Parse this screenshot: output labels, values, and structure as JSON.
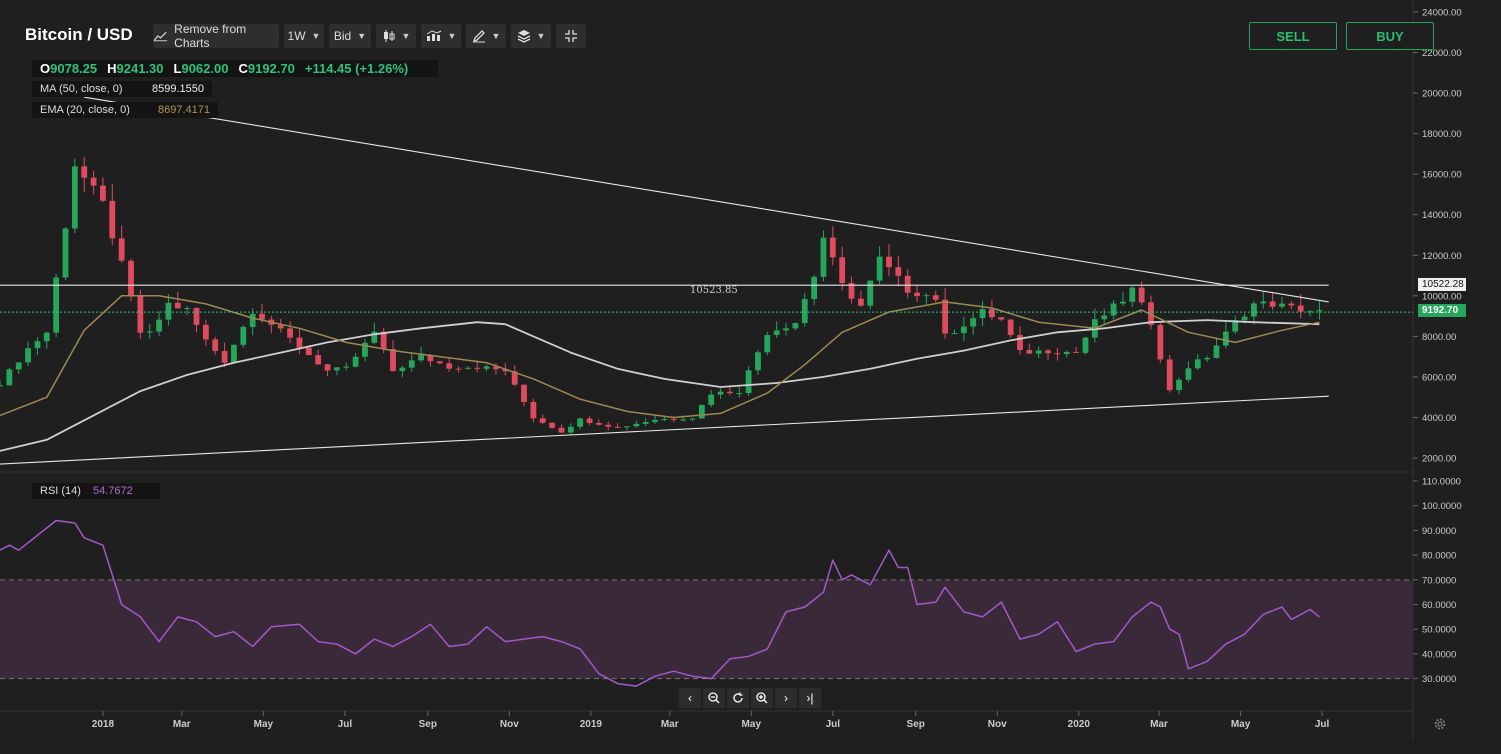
{
  "header": {
    "title": "Bitcoin / USD",
    "remove_label": "Remove from Charts",
    "interval_label": "1W",
    "price_type_label": "Bid",
    "sell_label": "SELL",
    "buy_label": "BUY"
  },
  "ohlc": {
    "o_key": "O",
    "o_val": "9078.25",
    "h_key": "H",
    "h_val": "9241.30",
    "l_key": "L",
    "l_val": "9062.00",
    "c_key": "C",
    "c_val": "9192.70",
    "change": "+114.45 (+1.26%)"
  },
  "indicators": {
    "ma_label": "MA (50, close, 0)",
    "ma_value": "8599.1550",
    "ma_color": "#cfcfcf",
    "ema_label": "EMA (20, close, 0)",
    "ema_value": "8697.4171",
    "ema_color": "#9c8a52",
    "rsi_label": "RSI (14)",
    "rsi_value": "54.7672",
    "rsi_color": "#a159c9"
  },
  "colors": {
    "up": "#26a65b",
    "down": "#e04a5e",
    "background": "#1f1f1f",
    "rsi_band": "#3a2939",
    "current_price_line": "#2ec27e"
  },
  "price_tags": {
    "horizontal_level": "10522.28",
    "horizontal_level_inline": "10523.85",
    "current": "9192.70"
  },
  "chart_data": [
    {
      "type": "candlestick",
      "interval": "1W",
      "ylim": [
        2000,
        24000
      ],
      "yticks": [
        "24000.00",
        "22000.00",
        "20000.00",
        "18000.00",
        "16000.00",
        "14000.00",
        "12000.00",
        "10000.00",
        "8000.00",
        "6000.00",
        "4000.00",
        "2000.00"
      ],
      "xticks": [
        {
          "label": "2018",
          "x": "2018-01-01"
        },
        {
          "label": "Mar",
          "x": "2018-03-01"
        },
        {
          "label": "May",
          "x": "2018-05-01"
        },
        {
          "label": "Jul",
          "x": "2018-07-01"
        },
        {
          "label": "Sep",
          "x": "2018-09-01"
        },
        {
          "label": "Nov",
          "x": "2018-11-01"
        },
        {
          "label": "2019",
          "x": "2019-01-01"
        },
        {
          "label": "Mar",
          "x": "2019-03-01"
        },
        {
          "label": "May",
          "x": "2019-05-01"
        },
        {
          "label": "Jul",
          "x": "2019-07-01"
        },
        {
          "label": "Sep",
          "x": "2019-09-01"
        },
        {
          "label": "Nov",
          "x": "2019-11-01"
        },
        {
          "label": "2020",
          "x": "2020-01-01"
        },
        {
          "label": "Mar",
          "x": "2020-03-01"
        },
        {
          "label": "May",
          "x": "2020-05-01"
        },
        {
          "label": "Jul",
          "x": "2020-07-01"
        }
      ],
      "x_range": [
        "2017-10-16",
        "2020-09-07"
      ],
      "keypoints_close": [
        [
          "2017-10-16",
          5700
        ],
        [
          "2017-11-06",
          7400
        ],
        [
          "2017-11-20",
          8200
        ],
        [
          "2017-12-04",
          13500
        ],
        [
          "2017-12-11",
          16500
        ],
        [
          "2017-12-18",
          15800
        ],
        [
          "2018-01-01",
          14500
        ],
        [
          "2018-01-15",
          11500
        ],
        [
          "2018-01-29",
          8200
        ],
        [
          "2018-02-05",
          8100
        ],
        [
          "2018-02-19",
          9600
        ],
        [
          "2018-03-05",
          9300
        ],
        [
          "2018-03-19",
          7800
        ],
        [
          "2018-04-02",
          6800
        ],
        [
          "2018-04-23",
          9300
        ],
        [
          "2018-05-07",
          8600
        ],
        [
          "2018-05-28",
          7500
        ],
        [
          "2018-06-18",
          6300
        ],
        [
          "2018-07-02",
          6400
        ],
        [
          "2018-07-23",
          8200
        ],
        [
          "2018-08-06",
          6300
        ],
        [
          "2018-08-27",
          7000
        ],
        [
          "2018-09-17",
          6500
        ],
        [
          "2018-10-08",
          6500
        ],
        [
          "2018-10-29",
          6300
        ],
        [
          "2018-11-19",
          4000
        ],
        [
          "2018-12-10",
          3300
        ],
        [
          "2018-12-24",
          3900
        ],
        [
          "2019-01-21",
          3500
        ],
        [
          "2019-02-18",
          3900
        ],
        [
          "2019-03-18",
          4000
        ],
        [
          "2019-04-01",
          5200
        ],
        [
          "2019-04-22",
          5300
        ],
        [
          "2019-05-13",
          8200
        ],
        [
          "2019-06-03",
          8700
        ],
        [
          "2019-06-17",
          11000
        ],
        [
          "2019-06-24",
          12900
        ],
        [
          "2019-07-08",
          10500
        ],
        [
          "2019-07-22",
          9500
        ],
        [
          "2019-08-05",
          11800
        ],
        [
          "2019-08-26",
          10300
        ],
        [
          "2019-09-16",
          9900
        ],
        [
          "2019-09-23",
          8000
        ],
        [
          "2019-10-21",
          9200
        ],
        [
          "2019-11-04",
          8800
        ],
        [
          "2019-11-18",
          7200
        ],
        [
          "2019-12-09",
          7300
        ],
        [
          "2019-12-30",
          7200
        ],
        [
          "2020-01-13",
          8700
        ],
        [
          "2020-02-03",
          9800
        ],
        [
          "2020-02-10",
          10300
        ],
        [
          "2020-02-24",
          8700
        ],
        [
          "2020-03-09",
          5300
        ],
        [
          "2020-03-23",
          6500
        ],
        [
          "2020-04-06",
          7000
        ],
        [
          "2020-04-27",
          8700
        ],
        [
          "2020-05-11",
          9600
        ],
        [
          "2020-05-25",
          9600
        ],
        [
          "2020-06-08",
          9400
        ],
        [
          "2020-06-29",
          9192.7
        ]
      ],
      "ma50": [
        [
          "2017-10-16",
          2350
        ],
        [
          "2017-11-20",
          2900
        ],
        [
          "2017-12-25",
          4100
        ],
        [
          "2018-01-29",
          5300
        ],
        [
          "2018-03-05",
          6100
        ],
        [
          "2018-04-09",
          6700
        ],
        [
          "2018-05-14",
          7200
        ],
        [
          "2018-06-18",
          7700
        ],
        [
          "2018-07-23",
          8100
        ],
        [
          "2018-08-27",
          8400
        ],
        [
          "2018-10-08",
          8700
        ],
        [
          "2018-10-29",
          8600
        ],
        [
          "2018-11-19",
          8000
        ],
        [
          "2018-12-17",
          7200
        ],
        [
          "2019-01-21",
          6400
        ],
        [
          "2019-02-25",
          5900
        ],
        [
          "2019-04-08",
          5500
        ],
        [
          "2019-05-20",
          5700
        ],
        [
          "2019-06-24",
          6000
        ],
        [
          "2019-07-29",
          6400
        ],
        [
          "2019-09-02",
          6900
        ],
        [
          "2019-10-07",
          7300
        ],
        [
          "2019-11-11",
          7800
        ],
        [
          "2019-12-16",
          8200
        ],
        [
          "2020-01-20",
          8400
        ],
        [
          "2020-02-24",
          8700
        ],
        [
          "2020-04-06",
          8800
        ],
        [
          "2020-05-11",
          8700
        ],
        [
          "2020-06-29",
          8600
        ]
      ],
      "ema20": [
        [
          "2017-10-16",
          4100
        ],
        [
          "2017-11-20",
          5000
        ],
        [
          "2017-12-18",
          8300
        ],
        [
          "2018-01-15",
          10000
        ],
        [
          "2018-02-12",
          10000
        ],
        [
          "2018-03-19",
          9600
        ],
        [
          "2018-04-23",
          8900
        ],
        [
          "2018-05-28",
          8400
        ],
        [
          "2018-07-02",
          7700
        ],
        [
          "2018-08-06",
          7300
        ],
        [
          "2018-09-10",
          7000
        ],
        [
          "2018-10-15",
          6700
        ],
        [
          "2018-11-19",
          5900
        ],
        [
          "2018-12-24",
          4900
        ],
        [
          "2019-01-28",
          4300
        ],
        [
          "2019-03-04",
          4000
        ],
        [
          "2019-04-08",
          4200
        ],
        [
          "2019-05-13",
          5200
        ],
        [
          "2019-06-10",
          6600
        ],
        [
          "2019-07-08",
          8200
        ],
        [
          "2019-08-12",
          9200
        ],
        [
          "2019-09-23",
          9700
        ],
        [
          "2019-10-28",
          9400
        ],
        [
          "2019-12-02",
          8700
        ],
        [
          "2020-01-13",
          8400
        ],
        [
          "2020-02-17",
          9300
        ],
        [
          "2020-03-23",
          8200
        ],
        [
          "2020-04-27",
          7700
        ],
        [
          "2020-06-01",
          8300
        ],
        [
          "2020-06-29",
          8700
        ]
      ],
      "trendlines": [
        {
          "name": "descending",
          "from": [
            "2017-12-18",
            19800
          ],
          "to": [
            "2020-07-06",
            9700
          ]
        },
        {
          "name": "ascending",
          "from": [
            "2017-10-16",
            1700
          ],
          "to": [
            "2020-07-06",
            5050
          ]
        },
        {
          "name": "horizontal",
          "from": [
            "2017-10-16",
            10523.85
          ],
          "to": [
            "2020-07-06",
            10523.85
          ]
        }
      ]
    },
    {
      "type": "line",
      "name": "RSI (14)",
      "ylim": [
        25,
        110
      ],
      "yticks": [
        "110.0000",
        "100.0000",
        "90.0000",
        "80.0000",
        "70.0000",
        "60.0000",
        "50.0000",
        "40.0000",
        "30.0000"
      ],
      "bands": [
        30,
        70
      ],
      "points": [
        [
          "2017-10-16",
          82
        ],
        [
          "2017-10-23",
          84
        ],
        [
          "2017-10-30",
          82
        ],
        [
          "2017-11-13",
          88
        ],
        [
          "2017-11-27",
          94
        ],
        [
          "2017-12-11",
          93
        ],
        [
          "2017-12-18",
          87
        ],
        [
          "2018-01-01",
          84
        ],
        [
          "2018-01-15",
          60
        ],
        [
          "2018-01-29",
          55
        ],
        [
          "2018-02-12",
          45
        ],
        [
          "2018-02-26",
          55
        ],
        [
          "2018-03-12",
          53
        ],
        [
          "2018-03-26",
          47
        ],
        [
          "2018-04-09",
          49
        ],
        [
          "2018-04-23",
          43
        ],
        [
          "2018-05-07",
          51
        ],
        [
          "2018-05-28",
          52
        ],
        [
          "2018-06-11",
          45
        ],
        [
          "2018-06-25",
          44
        ],
        [
          "2018-07-09",
          40
        ],
        [
          "2018-07-23",
          46
        ],
        [
          "2018-08-06",
          43
        ],
        [
          "2018-08-20",
          47
        ],
        [
          "2018-09-03",
          52
        ],
        [
          "2018-09-17",
          43
        ],
        [
          "2018-10-01",
          44
        ],
        [
          "2018-10-15",
          51
        ],
        [
          "2018-10-29",
          45
        ],
        [
          "2018-11-12",
          46
        ],
        [
          "2018-11-26",
          47
        ],
        [
          "2018-12-10",
          45
        ],
        [
          "2018-12-24",
          42
        ],
        [
          "2019-01-07",
          32
        ],
        [
          "2019-01-21",
          28
        ],
        [
          "2019-02-04",
          27
        ],
        [
          "2019-02-18",
          31
        ],
        [
          "2019-03-04",
          33
        ],
        [
          "2019-03-18",
          31
        ],
        [
          "2019-04-01",
          30
        ],
        [
          "2019-04-15",
          38
        ],
        [
          "2019-04-29",
          39
        ],
        [
          "2019-05-13",
          42
        ],
        [
          "2019-05-27",
          57
        ],
        [
          "2019-06-10",
          59
        ],
        [
          "2019-06-24",
          65
        ],
        [
          "2019-07-01",
          78
        ],
        [
          "2019-07-08",
          70
        ],
        [
          "2019-07-15",
          72
        ],
        [
          "2019-07-29",
          68
        ],
        [
          "2019-08-12",
          82
        ],
        [
          "2019-08-19",
          75
        ],
        [
          "2019-08-26",
          75
        ],
        [
          "2019-09-02",
          60
        ],
        [
          "2019-09-16",
          61
        ],
        [
          "2019-09-23",
          67
        ],
        [
          "2019-10-07",
          57
        ],
        [
          "2019-10-21",
          55
        ],
        [
          "2019-11-04",
          61
        ],
        [
          "2019-11-18",
          46
        ],
        [
          "2019-12-02",
          48
        ],
        [
          "2019-12-16",
          53
        ],
        [
          "2019-12-30",
          41
        ],
        [
          "2020-01-13",
          44
        ],
        [
          "2020-01-27",
          45
        ],
        [
          "2020-02-10",
          55
        ],
        [
          "2020-02-24",
          61
        ],
        [
          "2020-03-02",
          59
        ],
        [
          "2020-03-09",
          50
        ],
        [
          "2020-03-16",
          48
        ],
        [
          "2020-03-23",
          34
        ],
        [
          "2020-04-06",
          37
        ],
        [
          "2020-04-20",
          44
        ],
        [
          "2020-05-04",
          48
        ],
        [
          "2020-05-18",
          56
        ],
        [
          "2020-06-01",
          59
        ],
        [
          "2020-06-08",
          54
        ],
        [
          "2020-06-22",
          58
        ],
        [
          "2020-06-29",
          55
        ]
      ]
    }
  ]
}
